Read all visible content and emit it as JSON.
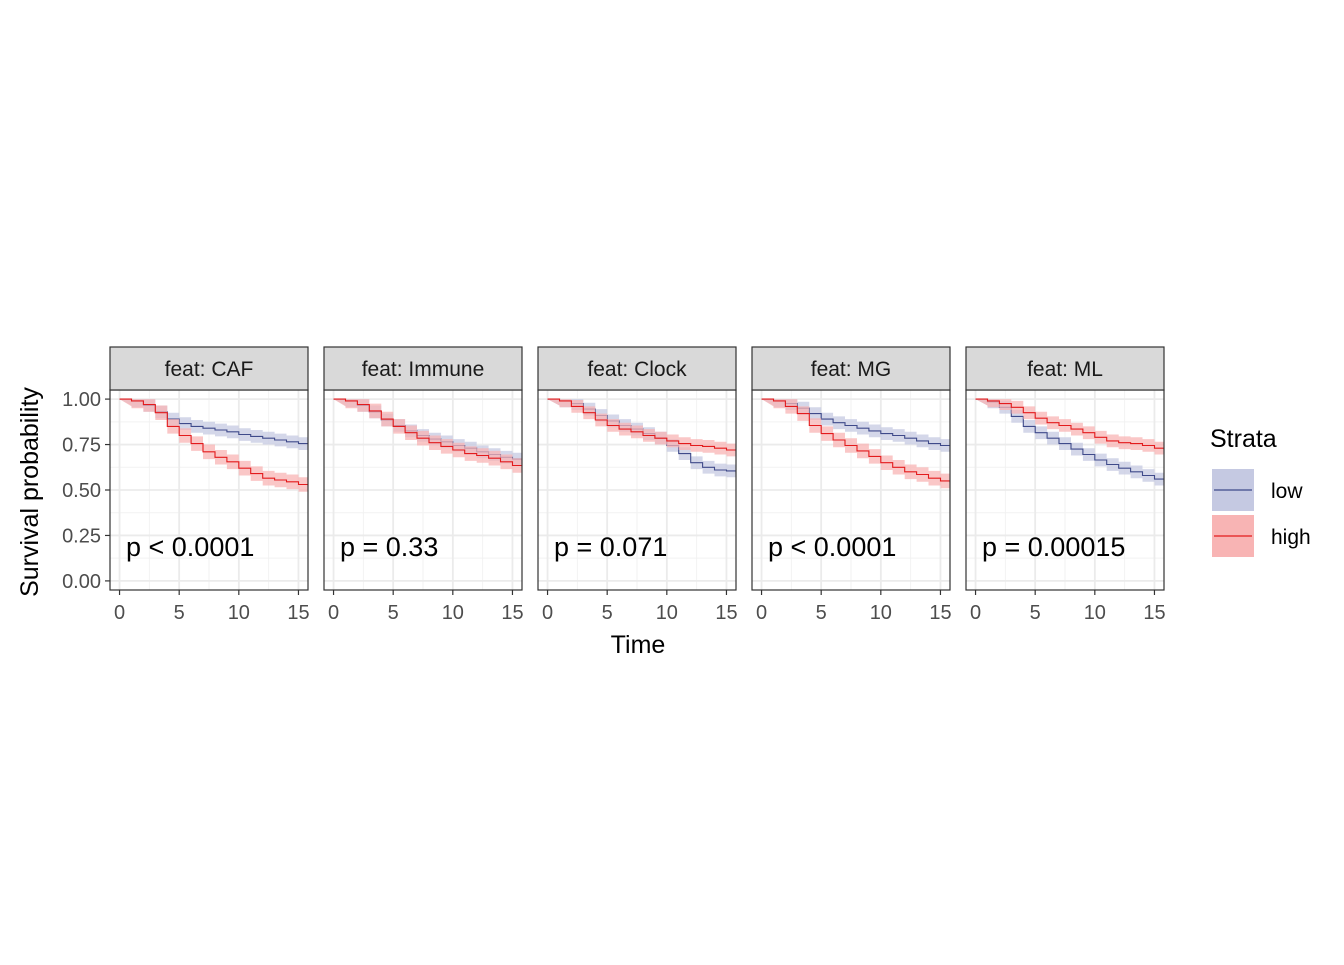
{
  "chart_data": {
    "type": "line",
    "subtype": "kaplan-meier-faceted",
    "ylabel": "Survival probability",
    "xlabel": "Time",
    "x_ticks": [
      0,
      5,
      10,
      15
    ],
    "y_ticks": [
      "0.00",
      "0.25",
      "0.50",
      "0.75",
      "1.00"
    ],
    "xlim": [
      -0.8,
      15.8
    ],
    "ylim": [
      -0.05,
      1.05
    ],
    "grid": true,
    "legend": {
      "title": "Strata",
      "placement": "right",
      "entries": [
        {
          "label": "low",
          "line_color": "#3F4A8A",
          "fill_color": "#C5C9E2"
        },
        {
          "label": "high",
          "line_color": "#E31A1C",
          "fill_color": "#F8B4B4"
        }
      ]
    },
    "facets": [
      {
        "strip": "feat: CAF",
        "pvalue": "p < 0.0001",
        "series": [
          {
            "name": "low",
            "x": [
              0,
              1,
              2,
              3,
              4,
              5,
              6,
              7,
              8,
              9,
              10,
              11,
              12,
              13,
              14,
              15,
              15.8
            ],
            "y": [
              1.0,
              0.99,
              0.965,
              0.93,
              0.89,
              0.865,
              0.85,
              0.84,
              0.83,
              0.82,
              0.805,
              0.795,
              0.785,
              0.775,
              0.765,
              0.755,
              0.75
            ],
            "band": 0.035
          },
          {
            "name": "high",
            "x": [
              0,
              1,
              2,
              3,
              4,
              5,
              6,
              7,
              8,
              9,
              10,
              11,
              12,
              13,
              14,
              15,
              15.8
            ],
            "y": [
              1.0,
              0.99,
              0.97,
              0.925,
              0.85,
              0.8,
              0.755,
              0.71,
              0.68,
              0.655,
              0.62,
              0.59,
              0.565,
              0.555,
              0.545,
              0.53,
              0.52
            ],
            "band": 0.04
          }
        ]
      },
      {
        "strip": "feat: Immune",
        "pvalue": "p = 0.33",
        "series": [
          {
            "name": "low",
            "x": [
              0,
              1,
              2,
              3,
              4,
              5,
              6,
              7,
              8,
              9,
              10,
              11,
              12,
              13,
              14,
              15,
              15.8
            ],
            "y": [
              1.0,
              0.99,
              0.965,
              0.93,
              0.885,
              0.855,
              0.825,
              0.8,
              0.78,
              0.765,
              0.745,
              0.73,
              0.71,
              0.695,
              0.68,
              0.67,
              0.66
            ],
            "band": 0.035
          },
          {
            "name": "high",
            "x": [
              0,
              1,
              2,
              3,
              4,
              5,
              6,
              7,
              8,
              9,
              10,
              11,
              12,
              13,
              14,
              15,
              15.8
            ],
            "y": [
              1.0,
              0.99,
              0.97,
              0.935,
              0.89,
              0.85,
              0.815,
              0.785,
              0.76,
              0.74,
              0.72,
              0.7,
              0.69,
              0.675,
              0.655,
              0.635,
              0.625
            ],
            "band": 0.04
          }
        ]
      },
      {
        "strip": "feat: Clock",
        "pvalue": "p = 0.071",
        "series": [
          {
            "name": "low",
            "x": [
              0,
              1,
              2,
              3,
              4,
              5,
              6,
              7,
              8,
              9,
              10,
              11,
              12,
              13,
              14,
              15,
              15.8
            ],
            "y": [
              1.0,
              0.99,
              0.975,
              0.945,
              0.91,
              0.88,
              0.855,
              0.835,
              0.81,
              0.785,
              0.745,
              0.7,
              0.65,
              0.625,
              0.61,
              0.605,
              0.59
            ],
            "band": 0.035
          },
          {
            "name": "high",
            "x": [
              0,
              1,
              2,
              3,
              4,
              5,
              6,
              7,
              8,
              9,
              10,
              11,
              12,
              13,
              14,
              15,
              15.8
            ],
            "y": [
              1.0,
              0.99,
              0.96,
              0.925,
              0.885,
              0.855,
              0.835,
              0.82,
              0.8,
              0.785,
              0.77,
              0.755,
              0.745,
              0.74,
              0.73,
              0.72,
              0.71
            ],
            "band": 0.035
          }
        ]
      },
      {
        "strip": "feat: MG",
        "pvalue": "p < 0.0001",
        "series": [
          {
            "name": "low",
            "x": [
              0,
              1,
              2,
              3,
              4,
              5,
              6,
              7,
              8,
              9,
              10,
              11,
              12,
              13,
              14,
              15,
              15.8
            ],
            "y": [
              1.0,
              0.99,
              0.975,
              0.95,
              0.92,
              0.89,
              0.87,
              0.855,
              0.84,
              0.825,
              0.81,
              0.8,
              0.785,
              0.77,
              0.755,
              0.745,
              0.74
            ],
            "band": 0.035
          },
          {
            "name": "high",
            "x": [
              0,
              1,
              2,
              3,
              4,
              5,
              6,
              7,
              8,
              9,
              10,
              11,
              12,
              13,
              14,
              15,
              15.8
            ],
            "y": [
              1.0,
              0.99,
              0.96,
              0.92,
              0.855,
              0.81,
              0.775,
              0.745,
              0.715,
              0.685,
              0.65,
              0.625,
              0.6,
              0.585,
              0.565,
              0.55,
              0.54
            ],
            "band": 0.04
          }
        ]
      },
      {
        "strip": "feat: ML",
        "pvalue": "p = 0.00015",
        "series": [
          {
            "name": "low",
            "x": [
              0,
              1,
              2,
              3,
              4,
              5,
              6,
              7,
              8,
              9,
              10,
              11,
              12,
              13,
              14,
              15,
              15.8
            ],
            "y": [
              1.0,
              0.985,
              0.955,
              0.905,
              0.85,
              0.815,
              0.785,
              0.755,
              0.725,
              0.695,
              0.665,
              0.64,
              0.62,
              0.6,
              0.58,
              0.56,
              0.545
            ],
            "band": 0.035
          },
          {
            "name": "high",
            "x": [
              0,
              1,
              2,
              3,
              4,
              5,
              6,
              7,
              8,
              9,
              10,
              11,
              12,
              13,
              14,
              15,
              15.8
            ],
            "y": [
              1.0,
              0.99,
              0.975,
              0.955,
              0.925,
              0.895,
              0.87,
              0.855,
              0.835,
              0.815,
              0.79,
              0.77,
              0.76,
              0.755,
              0.745,
              0.73,
              0.72
            ],
            "band": 0.035
          }
        ]
      }
    ]
  }
}
